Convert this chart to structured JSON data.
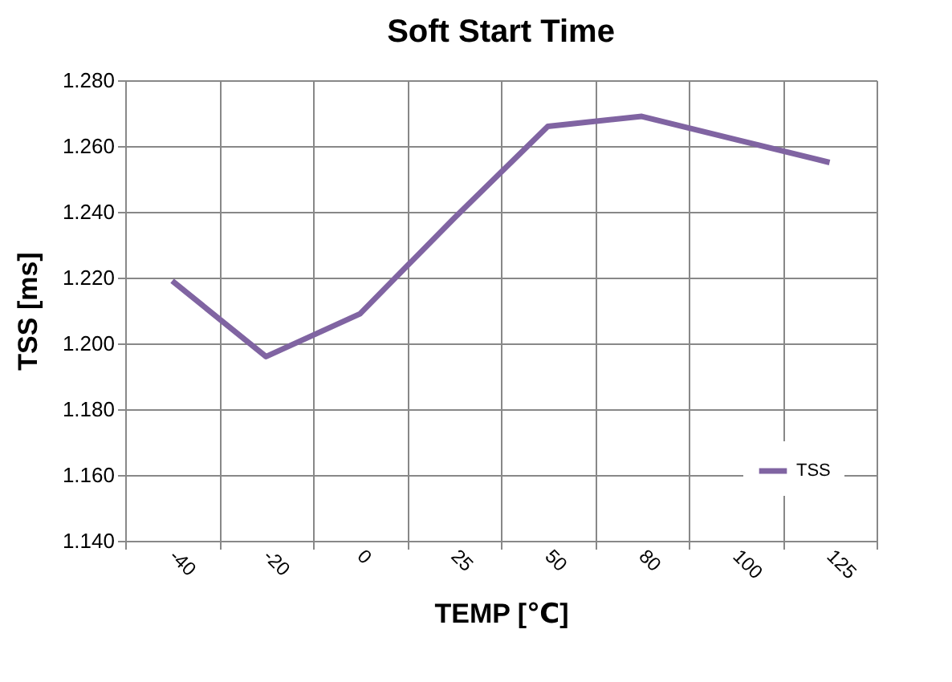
{
  "chart_data": {
    "type": "line",
    "title": "Soft Start Time",
    "xlabel": "TEMP [℃]",
    "ylabel": "TSS [ms]",
    "categories": [
      "-40",
      "-20",
      "0",
      "25",
      "50",
      "80",
      "100",
      "125"
    ],
    "series": [
      {
        "name": "TSS",
        "color": "#8064a2",
        "values": [
          1.219,
          1.196,
          1.209,
          1.238,
          1.266,
          1.269,
          1.262,
          1.255
        ]
      }
    ],
    "ylim": [
      1.14,
      1.28
    ],
    "yticks": [
      {
        "value": 1.14,
        "label": "1.140"
      },
      {
        "value": 1.16,
        "label": "1.160"
      },
      {
        "value": 1.18,
        "label": "1.180"
      },
      {
        "value": 1.2,
        "label": "1.200"
      },
      {
        "value": 1.22,
        "label": "1.220"
      },
      {
        "value": 1.24,
        "label": "1.240"
      },
      {
        "value": 1.26,
        "label": "1.260"
      },
      {
        "value": 1.28,
        "label": "1.280"
      }
    ],
    "grid": true,
    "legend": "right",
    "marker": "none",
    "line_style": "solid"
  }
}
